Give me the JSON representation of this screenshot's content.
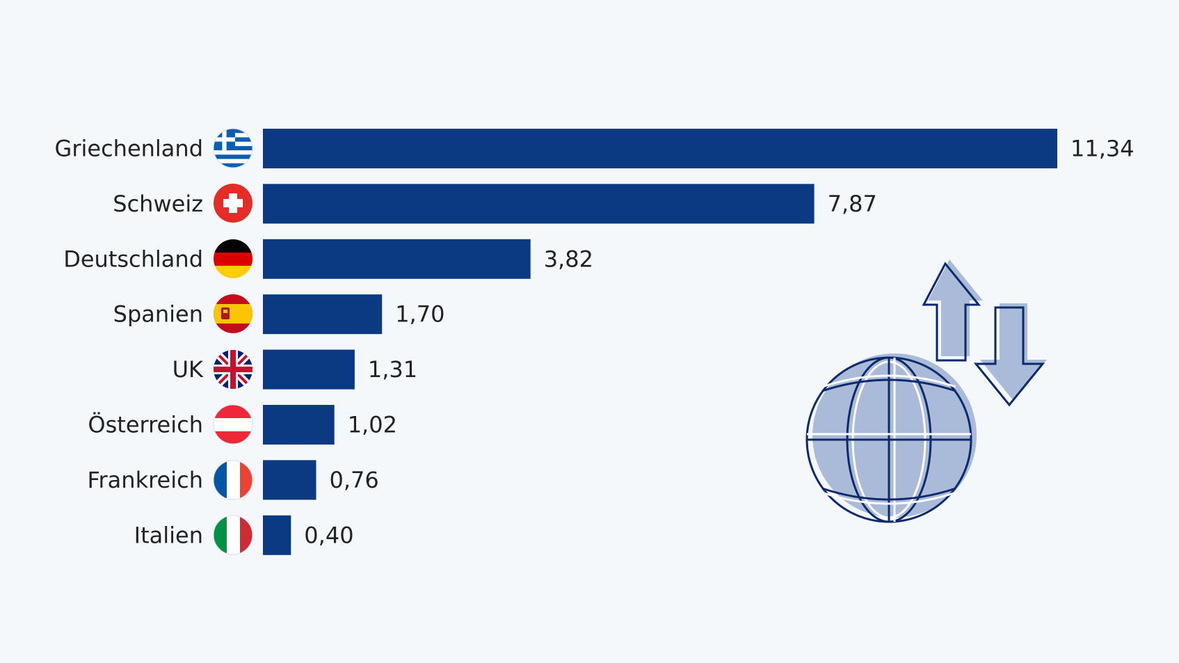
{
  "chart_data": {
    "type": "bar",
    "orientation": "horizontal",
    "title": "",
    "xlabel": "",
    "ylabel": "",
    "categories": [
      "Griechenland",
      "Schweiz",
      "Deutschland",
      "Spanien",
      "UK",
      "Österreich",
      "Frankreich",
      "Italien"
    ],
    "values": [
      11.34,
      7.87,
      3.82,
      1.7,
      1.31,
      1.02,
      0.76,
      0.4
    ],
    "value_labels": [
      "11,34",
      "7,87",
      "3,82",
      "1,70",
      "1,31",
      "1,02",
      "0,76",
      "0,40"
    ],
    "flags": [
      "flag-greece-icon",
      "flag-switzerland-icon",
      "flag-germany-icon",
      "flag-spain-icon",
      "flag-uk-icon",
      "flag-austria-icon",
      "flag-france-icon",
      "flag-italy-icon"
    ],
    "xlim": [
      0,
      11.34
    ],
    "grid": false,
    "legend": "none",
    "colors": {
      "bar": "#0b3a82",
      "background": "#f5f8fb",
      "text": "#222222"
    }
  },
  "decoration": {
    "icon": "globe-with-arrows-icon",
    "colors": {
      "fill": "#a9bbd8",
      "stroke": "#0b2a6b"
    }
  }
}
